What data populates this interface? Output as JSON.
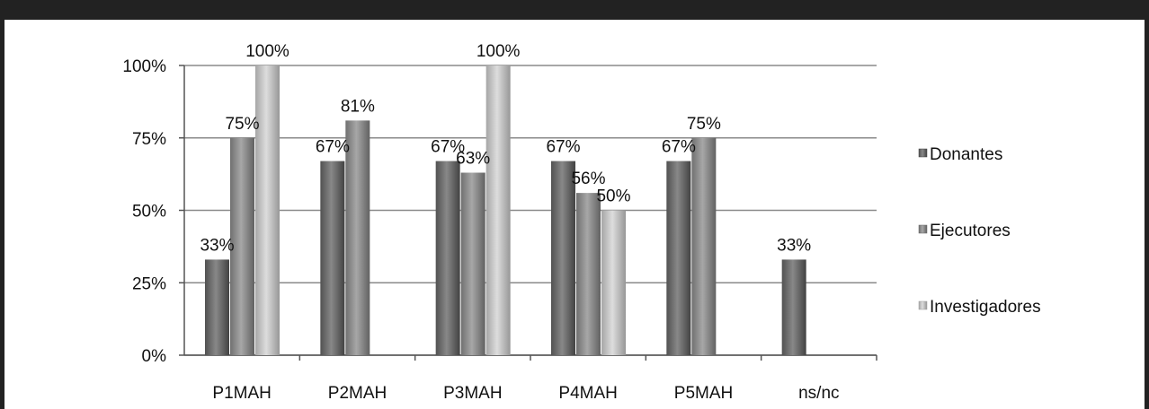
{
  "chart_data": {
    "type": "bar",
    "title": "",
    "xlabel": "",
    "ylabel": "",
    "ylim": [
      0,
      100
    ],
    "y_ticks": [
      "0%",
      "25%",
      "50%",
      "75%",
      "100%"
    ],
    "y_tick_values": [
      0,
      25,
      50,
      75,
      100
    ],
    "categories": [
      "P1MAH",
      "P2MAH",
      "P3MAH",
      "P4MAH",
      "P5MAH",
      "ns/nc"
    ],
    "series": [
      {
        "name": "Donantes",
        "color": "#6f6f6f",
        "values": [
          33,
          67,
          67,
          67,
          67,
          33
        ],
        "labels": [
          "33%",
          "67%",
          "67%",
          "67%",
          "67%",
          "33%"
        ]
      },
      {
        "name": "Ejecutores",
        "color": "#8e8e8e",
        "values": [
          75,
          81,
          63,
          56,
          75,
          null
        ],
        "labels": [
          "75%",
          "81%",
          "63%",
          "56%",
          "75%",
          null
        ]
      },
      {
        "name": "Investigadores",
        "color": "#c4c4c4",
        "values": [
          100,
          null,
          100,
          50,
          null,
          null
        ],
        "labels": [
          "100%",
          null,
          "100%",
          "50%",
          null,
          null
        ]
      }
    ],
    "grid": true,
    "legend_position": "right"
  }
}
